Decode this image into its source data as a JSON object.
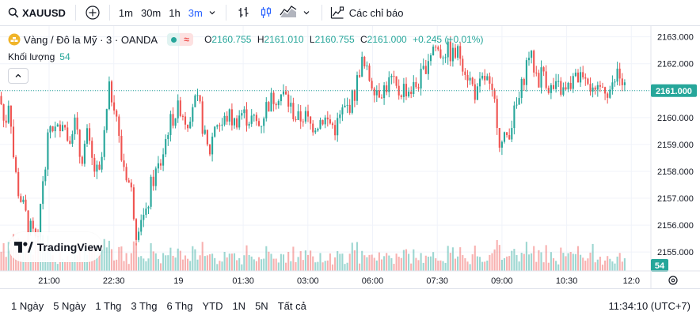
{
  "toolbar": {
    "symbol": "XAUUSD",
    "intervals": [
      "1m",
      "30m",
      "1h",
      "3m"
    ],
    "active_interval": "3m",
    "indicators_label": "Các chỉ báo"
  },
  "legend": {
    "title": "Vàng / Đô la Mỹ · 3 · OANDA",
    "o_label": "O",
    "o": "2160.755",
    "h_label": "H",
    "h": "2161.010",
    "l_label": "L",
    "l": "2160.755",
    "c_label": "C",
    "c": "2161.000",
    "change": "+0.245 (+0.01%)",
    "volume_label": "Khối lượng",
    "volume_value": "54"
  },
  "logo_text": "TradingView",
  "bottom": {
    "ranges": [
      "1 Ngày",
      "5 Ngày",
      "1 Thg",
      "3 Thg",
      "6 Thg",
      "YTD",
      "1N",
      "5N",
      "Tất cả"
    ],
    "clock": "11:34:10 (UTC+7)"
  },
  "colors": {
    "up": "#26a69a",
    "down": "#ef5350",
    "accent": "#2962ff",
    "price_tag": "#26a69a"
  },
  "chart_data": {
    "type": "candlestick",
    "y_ticks": [
      "2163.000",
      "2162.000",
      "2161.000",
      "2160.000",
      "2159.000",
      "2158.000",
      "2157.000",
      "2156.000",
      "2155.000"
    ],
    "ylim": [
      2154.3,
      2163.4
    ],
    "x_ticks": [
      "21:00",
      "22:30",
      "19",
      "01:30",
      "03:00",
      "06:00",
      "07:30",
      "09:00",
      "10:30",
      "12:0"
    ],
    "current_price": "2161.000",
    "current_volume": "54",
    "close_path": [
      [
        0,
        2160.8
      ],
      [
        6,
        2159.6
      ],
      [
        12,
        2160.9
      ],
      [
        16,
        2158.8
      ],
      [
        22,
        2157.4
      ],
      [
        30,
        2156.6
      ],
      [
        36,
        2156.0
      ],
      [
        42,
        2155.6
      ],
      [
        48,
        2155.2
      ],
      [
        52,
        2157.2
      ],
      [
        58,
        2158.6
      ],
      [
        64,
        2159.8
      ],
      [
        72,
        2159.4
      ],
      [
        78,
        2160.1
      ],
      [
        86,
        2159.2
      ],
      [
        94,
        2159.9
      ],
      [
        102,
        2158.4
      ],
      [
        110,
        2159.3
      ],
      [
        118,
        2158.1
      ],
      [
        126,
        2157.8
      ],
      [
        132,
        2159.4
      ],
      [
        138,
        2161.0
      ],
      [
        146,
        2160.5
      ],
      [
        152,
        2158.6
      ],
      [
        158,
        2158.1
      ],
      [
        166,
        2157.2
      ],
      [
        172,
        2155.8
      ],
      [
        178,
        2156.4
      ],
      [
        184,
        2156.2
      ],
      [
        190,
        2157.4
      ],
      [
        196,
        2157.9
      ],
      [
        204,
        2158.4
      ],
      [
        212,
        2159.6
      ],
      [
        220,
        2160.1
      ],
      [
        228,
        2160.4
      ],
      [
        236,
        2159.8
      ],
      [
        244,
        2160.6
      ],
      [
        252,
        2160.4
      ],
      [
        258,
        2159.3
      ],
      [
        264,
        2158.6
      ],
      [
        272,
        2159.9
      ],
      [
        280,
        2159.7
      ],
      [
        288,
        2160.1
      ],
      [
        296,
        2159.8
      ],
      [
        304,
        2160.2
      ],
      [
        312,
        2160.0
      ],
      [
        320,
        2159.9
      ],
      [
        328,
        2159.7
      ],
      [
        336,
        2160.4
      ],
      [
        344,
        2160.7
      ],
      [
        352,
        2160.9
      ],
      [
        360,
        2160.8
      ],
      [
        368,
        2160.3
      ],
      [
        376,
        2159.9
      ],
      [
        384,
        2160.1
      ],
      [
        392,
        2159.7
      ],
      [
        400,
        2159.8
      ],
      [
        408,
        2160.0
      ],
      [
        416,
        2159.8
      ],
      [
        424,
        2159.6
      ],
      [
        432,
        2160.2
      ],
      [
        440,
        2160.4
      ],
      [
        448,
        2160.9
      ],
      [
        456,
        2162.1
      ],
      [
        462,
        2161.7
      ],
      [
        470,
        2161.3
      ],
      [
        478,
        2161.0
      ],
      [
        486,
        2161.1
      ],
      [
        494,
        2161.4
      ],
      [
        502,
        2160.9
      ],
      [
        510,
        2161.1
      ],
      [
        518,
        2161.0
      ],
      [
        526,
        2161.2
      ],
      [
        534,
        2161.6
      ],
      [
        540,
        2162.2
      ],
      [
        548,
        2162.7
      ],
      [
        556,
        2162.4
      ],
      [
        564,
        2162.5
      ],
      [
        572,
        2162.3
      ],
      [
        580,
        2162.4
      ],
      [
        588,
        2161.8
      ],
      [
        596,
        2161.2
      ],
      [
        602,
        2160.8
      ],
      [
        608,
        2161.3
      ],
      [
        614,
        2161.5
      ],
      [
        620,
        2160.8
      ],
      [
        626,
        2160.4
      ],
      [
        632,
        2158.9
      ],
      [
        638,
        2159.2
      ],
      [
        644,
        2159.6
      ],
      [
        650,
        2160.2
      ],
      [
        656,
        2160.7
      ],
      [
        662,
        2161.6
      ],
      [
        668,
        2162.4
      ],
      [
        674,
        2161.9
      ],
      [
        680,
        2161.4
      ],
      [
        686,
        2161.8
      ],
      [
        692,
        2161.2
      ],
      [
        698,
        2161.0
      ],
      [
        706,
        2161.1
      ],
      [
        714,
        2160.9
      ],
      [
        722,
        2161.3
      ],
      [
        730,
        2161.5
      ],
      [
        738,
        2161.8
      ],
      [
        744,
        2161.4
      ],
      [
        750,
        2160.6
      ],
      [
        756,
        2160.9
      ],
      [
        762,
        2161.2
      ],
      [
        768,
        2161.0
      ],
      [
        774,
        2161.1
      ],
      [
        780,
        2161.7
      ],
      [
        786,
        2161.2
      ],
      [
        792,
        2161.0
      ]
    ]
  }
}
